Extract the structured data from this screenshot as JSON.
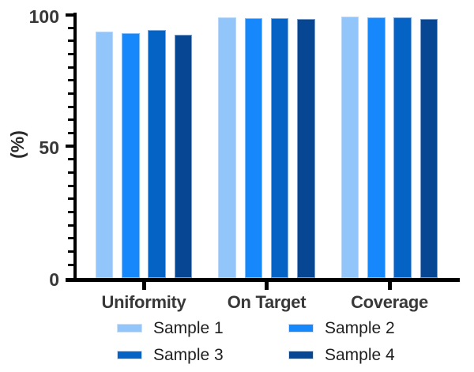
{
  "chart_data": {
    "type": "bar",
    "title": "",
    "ylabel": "(%)",
    "xlabel": "",
    "ylim": [
      0,
      100
    ],
    "yticks_major": [
      0,
      50,
      100
    ],
    "ytick_minor_step": 5,
    "grid": false,
    "legend_position": "bottom",
    "categories": [
      "Uniformity",
      "On Target",
      "Coverage"
    ],
    "series": [
      {
        "name": "Sample 1",
        "color": "#92C5FA",
        "values": [
          93.5,
          98.9,
          99.2
        ]
      },
      {
        "name": "Sample 2",
        "color": "#1787FC",
        "values": [
          93.0,
          98.7,
          99.1
        ]
      },
      {
        "name": "Sample 3",
        "color": "#0663C6",
        "values": [
          94.2,
          98.7,
          98.9
        ]
      },
      {
        "name": "Sample 4",
        "color": "#064693",
        "values": [
          92.4,
          98.4,
          98.5
        ]
      }
    ],
    "axis_color": "#000000",
    "label_color": "#383838"
  }
}
